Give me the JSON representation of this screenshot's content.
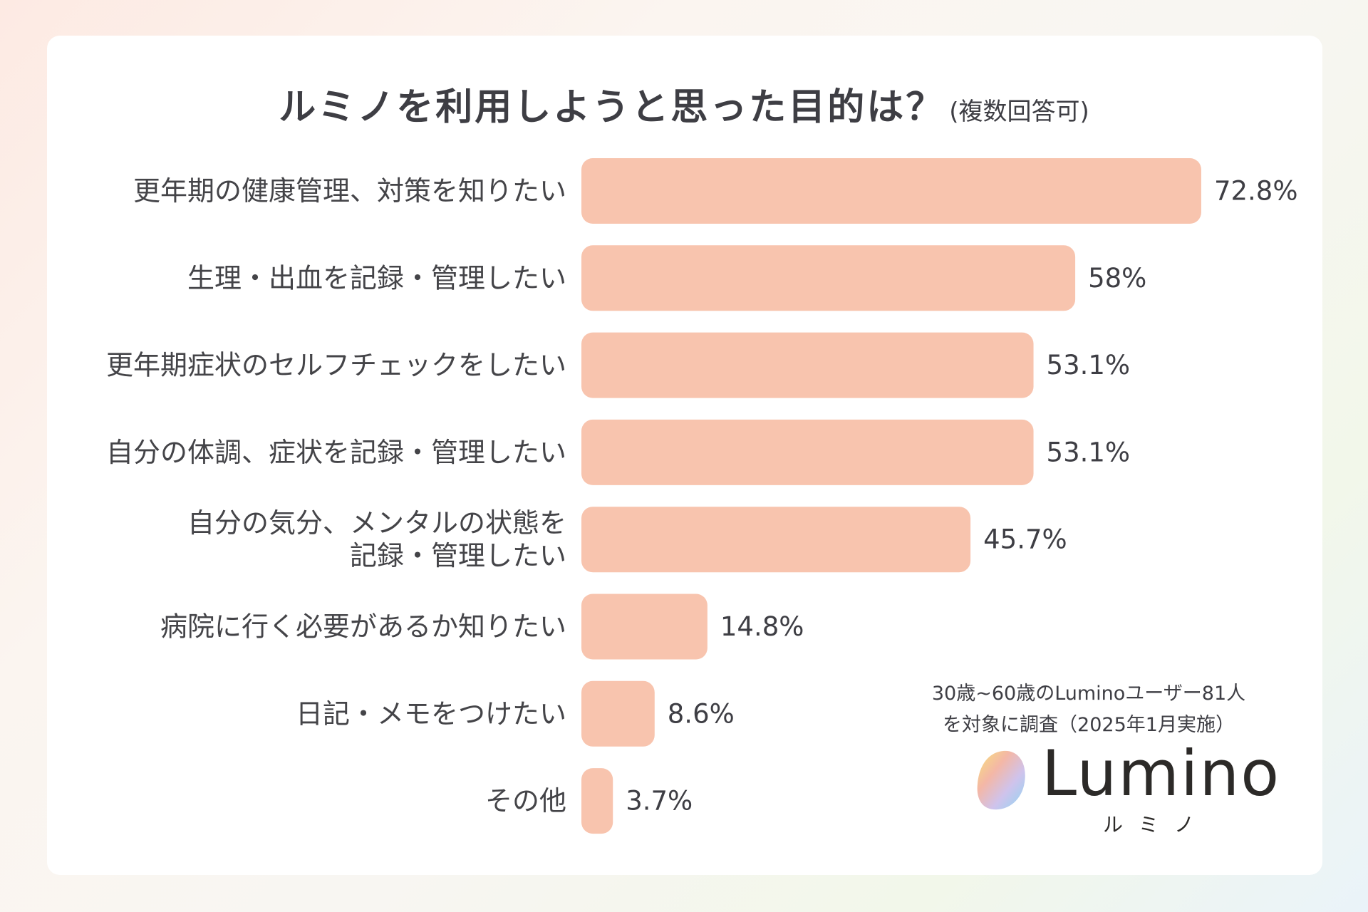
{
  "title": {
    "main": "ルミノを利用しようと思った目的は？",
    "note": "(複数回答可)"
  },
  "colors": {
    "bar": "#f8c4ae",
    "text": "#444448",
    "card": "#ffffff"
  },
  "chart_data": {
    "type": "bar",
    "orientation": "horizontal",
    "categories": [
      [
        "更年期の健康管理、対策を知りたい"
      ],
      [
        "生理・出血を記録・管理したい"
      ],
      [
        "更年期症状のセルフチェックをしたい"
      ],
      [
        "自分の体調、症状を記録・管理したい"
      ],
      [
        "自分の気分、メンタルの状態を",
        "記録・管理したい"
      ],
      [
        "病院に行く必要があるか知りたい"
      ],
      [
        "日記・メモをつけたい"
      ],
      [
        "その他"
      ]
    ],
    "values": [
      72.8,
      58,
      53.1,
      53.1,
      45.7,
      14.8,
      8.6,
      3.7
    ],
    "value_labels": [
      "72.8%",
      "58%",
      "53.1%",
      "53.1%",
      "45.7%",
      "14.8%",
      "8.6%",
      "3.7%"
    ],
    "unit": "%",
    "grid": false,
    "legend": "none"
  },
  "footer": {
    "survey_line1": "30歳~60歳のLuminoユーザー81人",
    "survey_line2": "を対象に調査（2025年1月実施）"
  },
  "brand": {
    "name": "Lumino",
    "kana": "ルミノ",
    "icon": "gradient-blob-logo-icon"
  }
}
